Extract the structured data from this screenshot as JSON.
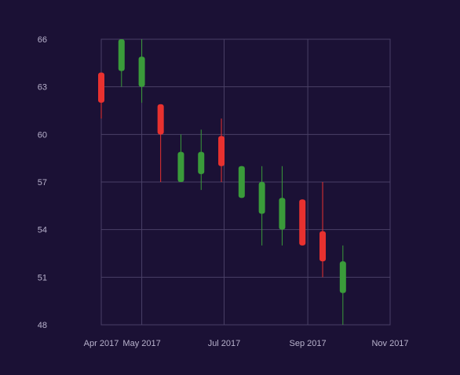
{
  "colors": {
    "background": "#1b1135",
    "grid": "#4a4066",
    "axis": "#6a6088",
    "tick_text": "#b8b2cc",
    "up": "#3a9b3a",
    "down": "#e8312f"
  },
  "chart_data": {
    "type": "candlestick",
    "ylim": [
      48,
      66
    ],
    "yticks": [
      "48",
      "51",
      "54",
      "57",
      "60",
      "63",
      "66"
    ],
    "xticks": [
      {
        "label": "Apr 2017",
        "date": "2017-04-01"
      },
      {
        "label": "May 2017",
        "date": "2017-05-01"
      },
      {
        "label": "Jul 2017",
        "date": "2017-07-01"
      },
      {
        "label": "Sep 2017",
        "date": "2017-09-01"
      },
      {
        "label": "Nov 2017",
        "date": "2017-11-01"
      }
    ],
    "xrange": [
      "2017-04-01",
      "2017-11-01"
    ],
    "candles": [
      {
        "date": "2017-04-01",
        "open": 63.9,
        "high": 63.9,
        "low": 61.0,
        "close": 62.0
      },
      {
        "date": "2017-04-16",
        "open": 64.0,
        "high": 66.0,
        "low": 63.0,
        "close": 66.0
      },
      {
        "date": "2017-04-31",
        "open": 63.0,
        "high": 66.0,
        "low": 62.0,
        "close": 64.9
      },
      {
        "date": "2017-05-15",
        "open": 61.9,
        "high": 61.9,
        "low": 57.0,
        "close": 60.0
      },
      {
        "date": "2017-05-30",
        "open": 57.0,
        "high": 60.0,
        "low": 57.0,
        "close": 58.9
      },
      {
        "date": "2017-06-14",
        "open": 57.5,
        "high": 60.3,
        "low": 56.5,
        "close": 58.9
      },
      {
        "date": "2017-06-29",
        "open": 59.9,
        "high": 61.0,
        "low": 57.0,
        "close": 58.0
      },
      {
        "date": "2017-07-14",
        "open": 56.0,
        "high": 58.0,
        "low": 56.0,
        "close": 58.0
      },
      {
        "date": "2017-07-29",
        "open": 55.0,
        "high": 58.0,
        "low": 53.0,
        "close": 57.0
      },
      {
        "date": "2017-08-13",
        "open": 54.0,
        "high": 58.0,
        "low": 53.0,
        "close": 56.0
      },
      {
        "date": "2017-08-28",
        "open": 55.9,
        "high": 55.9,
        "low": 53.0,
        "close": 53.0
      },
      {
        "date": "2017-09-12",
        "open": 53.9,
        "high": 57.0,
        "low": 51.0,
        "close": 52.0
      },
      {
        "date": "2017-09-27",
        "open": 50.0,
        "high": 53.0,
        "low": 48.0,
        "close": 52.0
      }
    ]
  }
}
